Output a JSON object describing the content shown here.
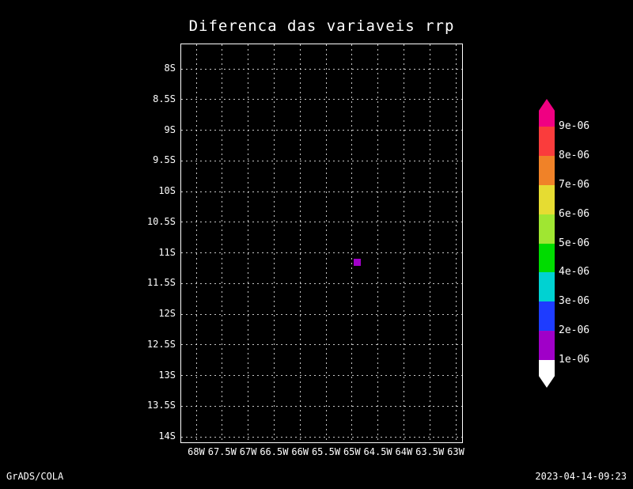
{
  "footer": {
    "left": "GrADS/COLA",
    "right": "2023-04-14-09:23"
  },
  "chart_data": {
    "type": "heatmap",
    "title": "Diferenca das variaveis rrp",
    "x_ticks": [
      "68W",
      "67.5W",
      "67W",
      "66.5W",
      "66W",
      "65.5W",
      "65W",
      "64.5W",
      "64W",
      "63.5W",
      "63W"
    ],
    "y_ticks": [
      "8S",
      "8.5S",
      "9S",
      "9.5S",
      "10S",
      "10.5S",
      "11S",
      "11.5S",
      "12S",
      "12.5S",
      "13S",
      "13.5S",
      "14S"
    ],
    "xlim": [
      "68.3W",
      "62.9W"
    ],
    "ylim": [
      "7.6S",
      "14.1S"
    ],
    "grid": "dashed",
    "legend_position": "right-colorbar",
    "background_color": "#000000",
    "foreground_color": "#ffffff",
    "colorbar": {
      "boundary_labels_top_to_bottom": [
        "9e-06",
        "8e-06",
        "7e-06",
        "6e-06",
        "5e-06",
        "4e-06",
        "3e-06",
        "2e-06",
        "1e-06"
      ],
      "band_colors_top_to_bottom": [
        "#fa3c3c",
        "#f08228",
        "#e6dc32",
        "#a0e632",
        "#00dc00",
        "#00d2d2",
        "#1e3cff",
        "#a000c8"
      ],
      "top_arrow_color": "#f00082",
      "bottom_arrow_color": "#ffffff"
    },
    "points": [
      {
        "lon": "64.9W",
        "lat": "11.2S",
        "lon_w": 64.9,
        "lat_s": 11.15,
        "color": "#a000c8",
        "value_band": "1e-06 to 2e-06"
      }
    ]
  }
}
